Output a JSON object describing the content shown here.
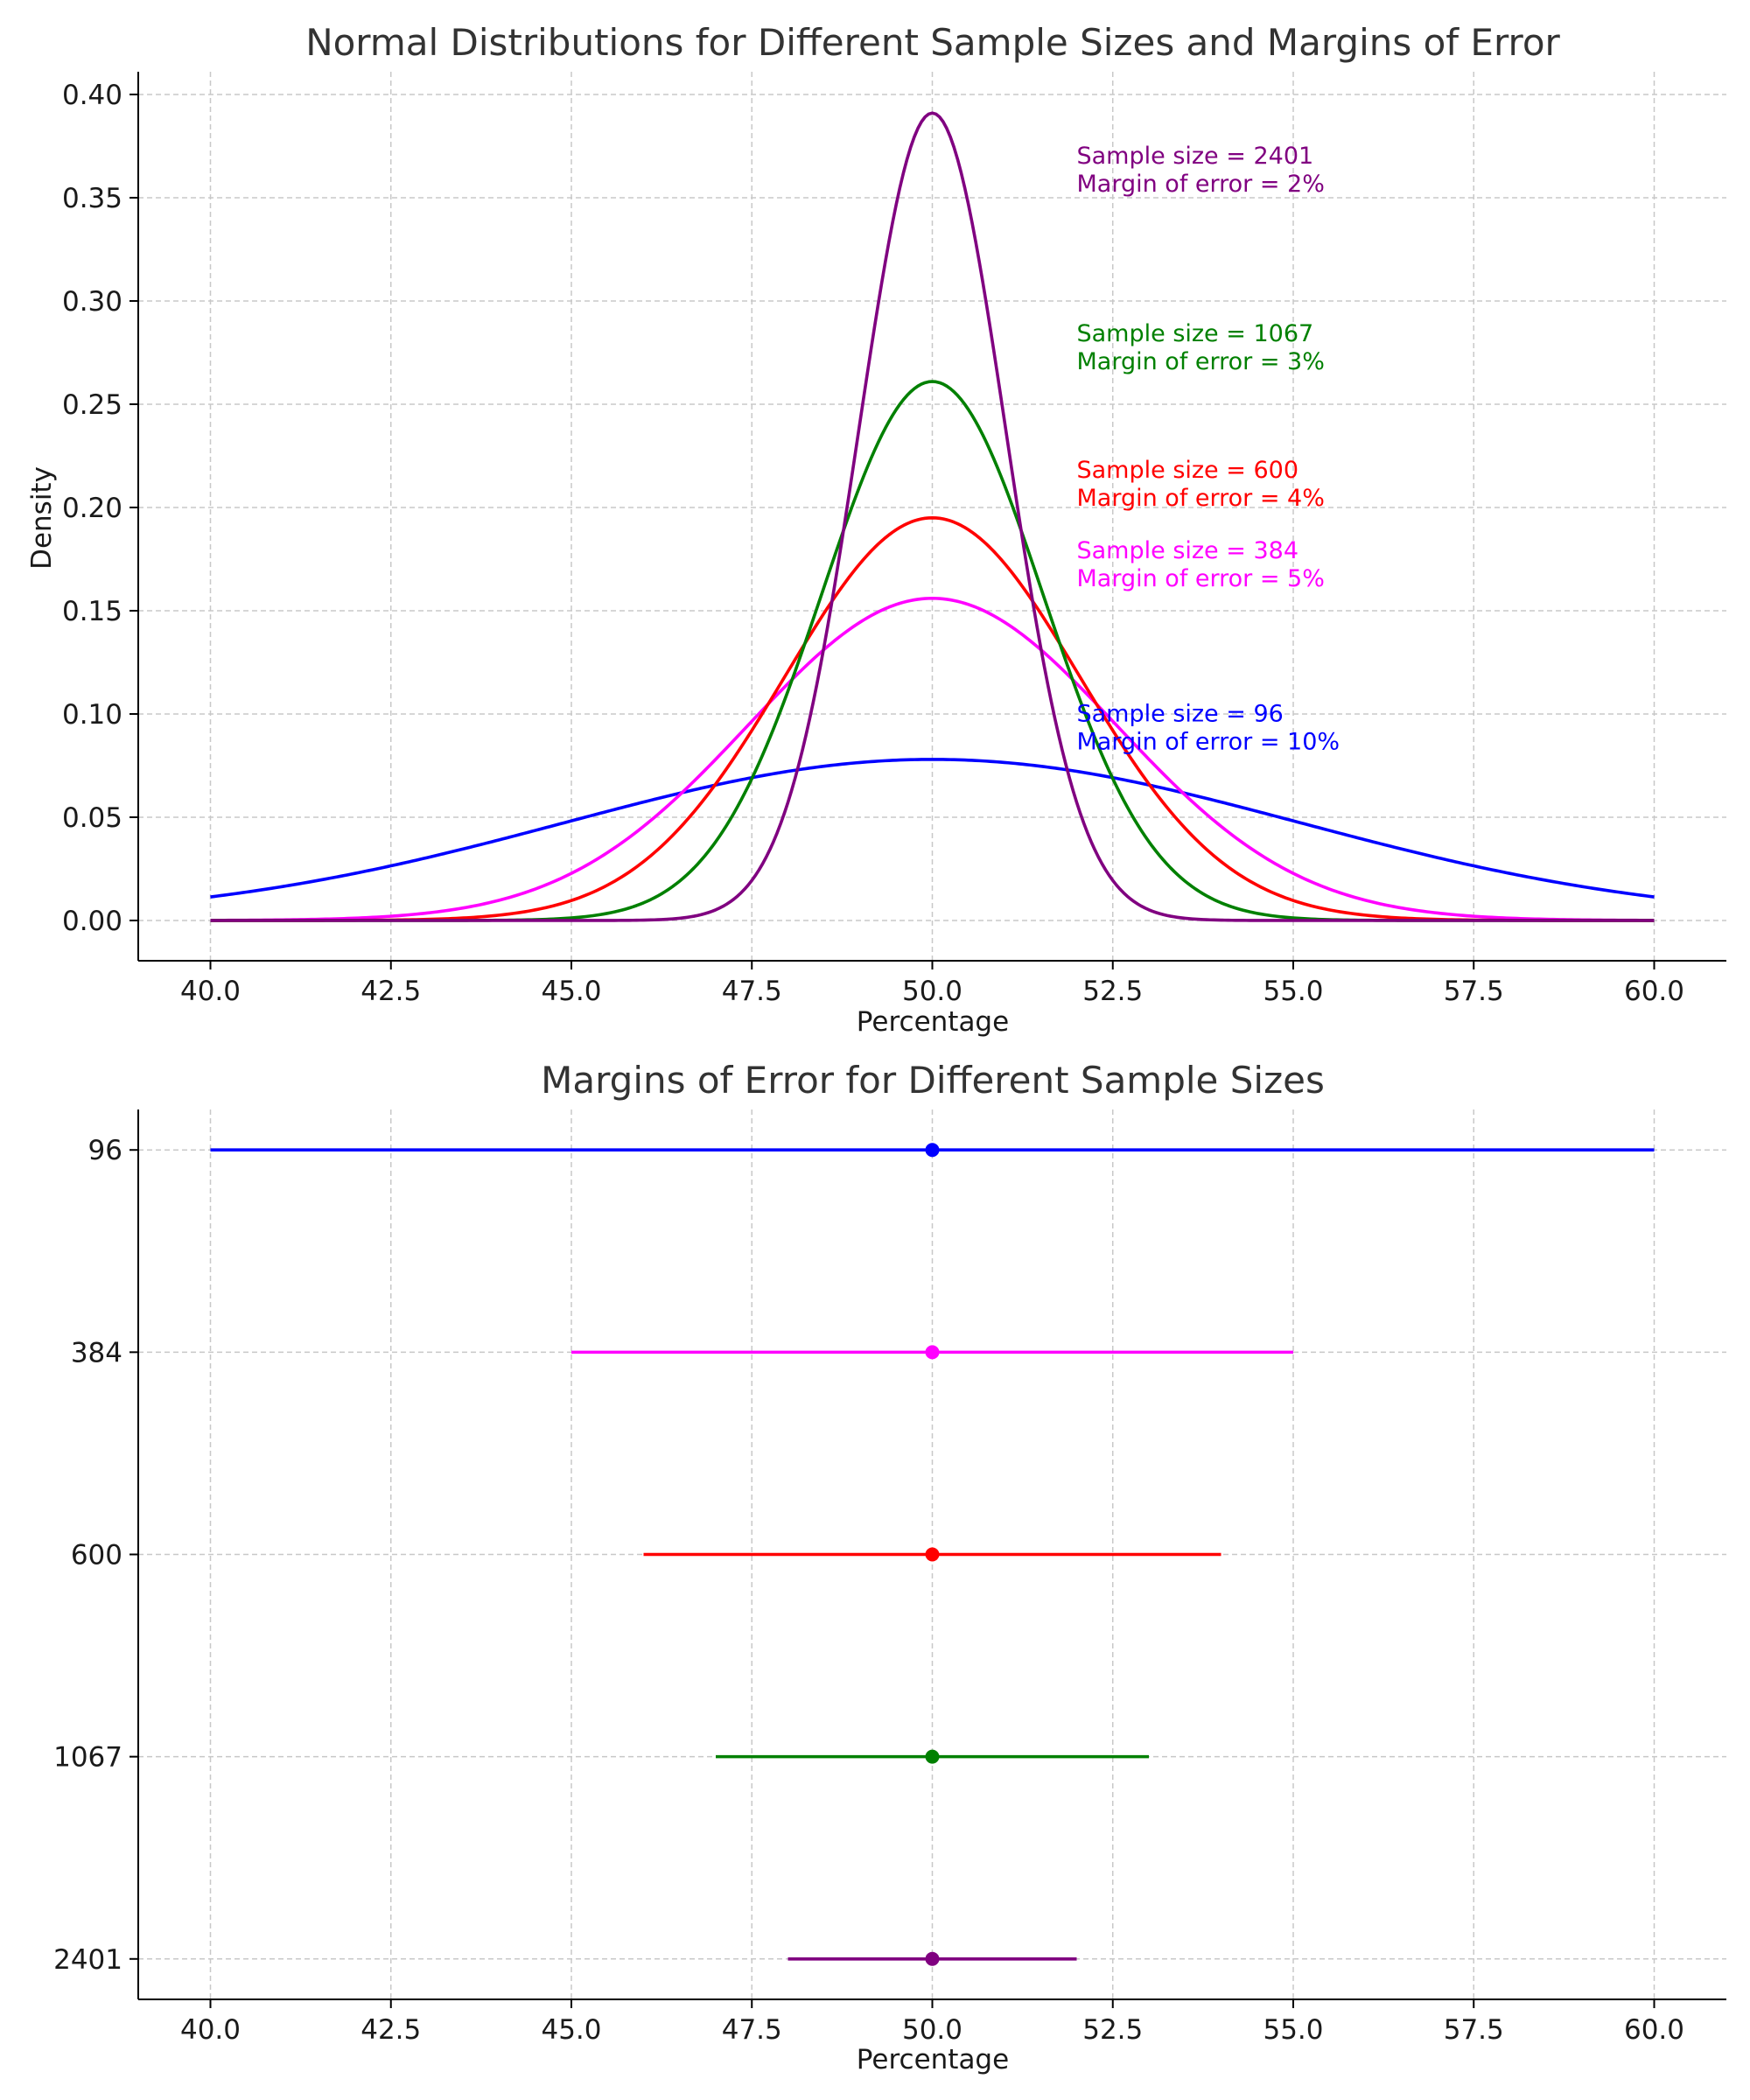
{
  "chart_data": [
    {
      "type": "line",
      "title": "Normal Distributions for Different Sample Sizes and Margins of Error",
      "xlabel": "Percentage",
      "ylabel": "Density",
      "xlim": [
        39,
        61
      ],
      "ylim": [
        -0.0195,
        0.411
      ],
      "grid": true,
      "x_ticks": [
        "40.0",
        "42.5",
        "45.0",
        "47.5",
        "50.0",
        "52.5",
        "55.0",
        "57.5",
        "60.0"
      ],
      "y_ticks": [
        "0.00",
        "0.05",
        "0.10",
        "0.15",
        "0.20",
        "0.25",
        "0.30",
        "0.35",
        "0.40"
      ],
      "series": [
        {
          "color": "#0000ff",
          "mean": 50,
          "sd": 5.1,
          "x_range": [
            40,
            60
          ],
          "peak": 0.078
        },
        {
          "color": "#ff00ff",
          "mean": 50,
          "sd": 2.55,
          "x_range": [
            40,
            60
          ],
          "peak": 0.156
        },
        {
          "color": "#ff0000",
          "mean": 50,
          "sd": 2.04,
          "x_range": [
            40,
            60
          ],
          "peak": 0.195
        },
        {
          "color": "#008000",
          "mean": 50,
          "sd": 1.53,
          "x_range": [
            40,
            60
          ],
          "peak": 0.261
        },
        {
          "color": "#800080",
          "mean": 50,
          "sd": 1.02,
          "x_range": [
            40,
            60
          ],
          "peak": 0.391
        }
      ],
      "annotations": [
        {
          "x": 52,
          "y": 0.352,
          "color": "#800080",
          "line1": "Sample size = 2401",
          "line2": "Margin of error = 2%"
        },
        {
          "x": 52,
          "y": 0.266,
          "color": "#008000",
          "line1": "Sample size = 1067",
          "line2": "Margin of error = 3%"
        },
        {
          "x": 52,
          "y": 0.2,
          "color": "#ff0000",
          "line1": "Sample size = 600",
          "line2": "Margin of error = 4%"
        },
        {
          "x": 52,
          "y": 0.161,
          "color": "#ff00ff",
          "line1": "Sample size = 384",
          "line2": "Margin of error = 5%"
        },
        {
          "x": 52,
          "y": 0.082,
          "color": "#0000ff",
          "line1": "Sample size = 96",
          "line2": "Margin of error = 10%"
        }
      ]
    },
    {
      "type": "errorbar",
      "title": "Margins of Error for Different Sample Sizes",
      "xlabel": "Percentage",
      "ylabel": "",
      "xlim": [
        39,
        61
      ],
      "grid": true,
      "x_ticks": [
        "40.0",
        "42.5",
        "45.0",
        "47.5",
        "50.0",
        "52.5",
        "55.0",
        "57.5",
        "60.0"
      ],
      "categories": [
        "96",
        "384",
        "600",
        "1067",
        "2401"
      ],
      "points": [
        {
          "sample_size": "96",
          "center": 50,
          "low": 40,
          "high": 60,
          "color": "#0000ff"
        },
        {
          "sample_size": "384",
          "center": 50,
          "low": 45,
          "high": 55,
          "color": "#ff00ff"
        },
        {
          "sample_size": "600",
          "center": 50,
          "low": 46,
          "high": 54,
          "color": "#ff0000"
        },
        {
          "sample_size": "1067",
          "center": 50,
          "low": 47,
          "high": 53,
          "color": "#008000"
        },
        {
          "sample_size": "2401",
          "center": 50,
          "low": 48,
          "high": 52,
          "color": "#800080"
        }
      ]
    }
  ]
}
